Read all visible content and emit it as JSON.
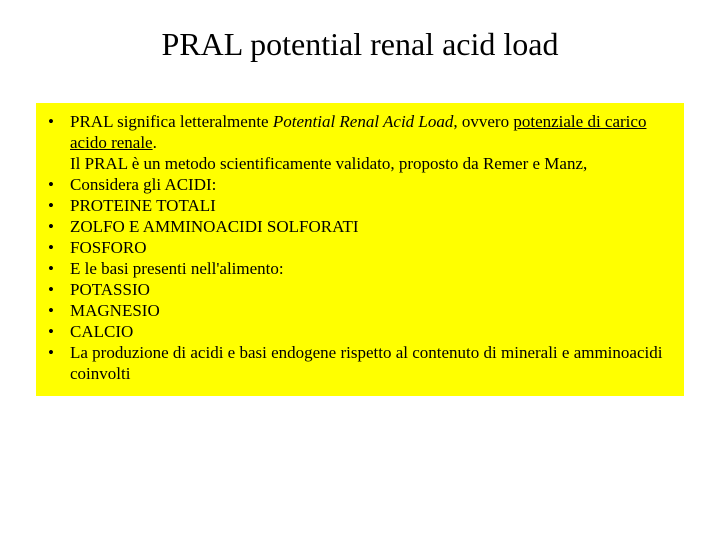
{
  "slide": {
    "title": "PRAL potential renal acid load",
    "title_fontsize": 32,
    "content_box_bg": "#ffff00",
    "bullet_fontsize": 17,
    "bullet_lineheight": 21,
    "bullets": [
      {
        "pre": "PRAL significa letteralmente ",
        "italic": "Potential Renal Acid Load",
        "mid": ", ovvero ",
        "underline1": "potenziale di carico acido renale",
        "post1": ".",
        "line2": "Il PRAL è un metodo scientificamente validato, proposto da Remer e Manz,"
      },
      {
        "text": "Considera gli ACIDI:"
      },
      {
        "text": "PROTEINE TOTALI"
      },
      {
        "text": "ZOLFO E AMMINOACIDI SOLFORATI"
      },
      {
        "text": "FOSFORO"
      },
      {
        "text": "E le basi presenti nell'alimento:"
      },
      {
        "text": "POTASSIO"
      },
      {
        "text": "MAGNESIO"
      },
      {
        "text": "CALCIO"
      },
      {
        "text": "La produzione di acidi e basi endogene rispetto al contenuto di minerali e amminoacidi coinvolti"
      }
    ]
  }
}
